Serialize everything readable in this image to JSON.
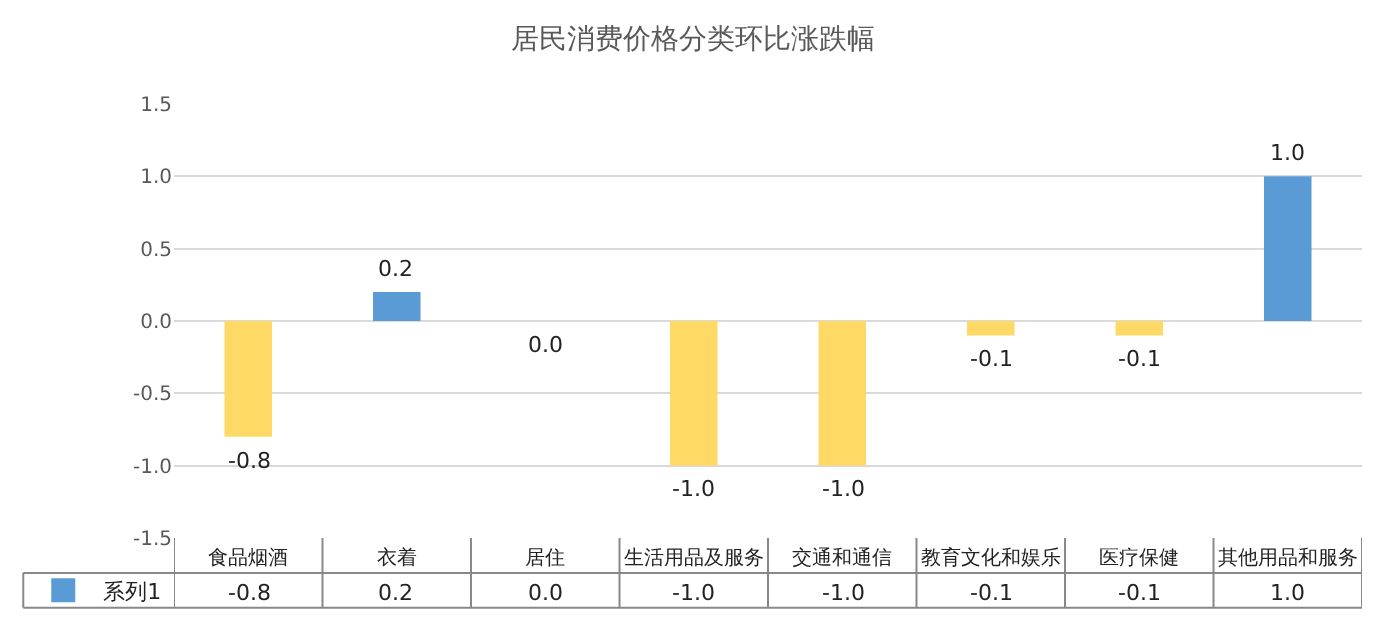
{
  "chart_data": {
    "type": "bar",
    "title": "居民消费价格分类环比涨跌幅",
    "categories": [
      "食品烟酒",
      "衣着",
      "居住",
      "生活用品及服务",
      "交通和通信",
      "教育文化和娱乐",
      "医疗保健",
      "其他用品和服务"
    ],
    "series": [
      {
        "name": "系列1",
        "color": "#5b9bd5",
        "values": [
          -0.8,
          0.2,
          0.0,
          -1.0,
          -1.0,
          -0.1,
          -0.1,
          1.0
        ],
        "colors": [
          "#ffd966",
          "#5b9bd5",
          "#ffd966",
          "#ffd966",
          "#ffd966",
          "#ffd966",
          "#ffd966",
          "#5b9bd5"
        ],
        "value_labels": [
          "-0.8",
          "0.2",
          "0.0",
          "-1.0",
          "-1.0",
          "-0.1",
          "-0.1",
          "1.0"
        ]
      }
    ],
    "ylim": [
      -1.5,
      1.5
    ],
    "yticks": [
      {
        "value": -1.5,
        "label": "-1.5"
      },
      {
        "value": -1,
        "label": "-1.0"
      },
      {
        "value": -0.5,
        "label": "-0.5"
      },
      {
        "value": 0,
        "label": "0.0"
      },
      {
        "value": 0.5,
        "label": "0.5"
      },
      {
        "value": 1,
        "label": "1.0"
      },
      {
        "value": 1.5,
        "label": "1.5"
      }
    ],
    "grid": "y",
    "legend": "bottom left"
  }
}
